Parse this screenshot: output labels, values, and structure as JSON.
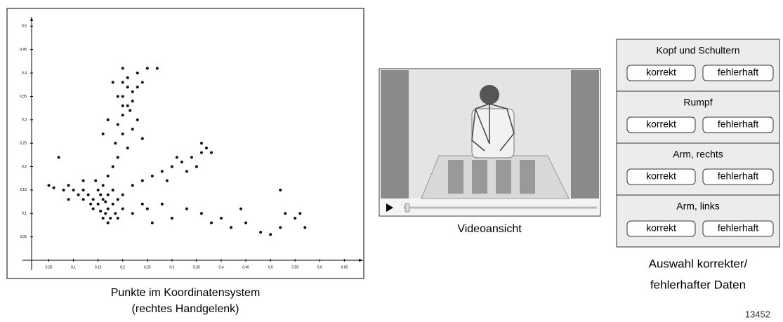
{
  "chart_data": {
    "type": "scatter",
    "color": "#111111",
    "x": [
      0.15,
      0.16,
      0.17,
      0.155,
      0.165,
      0.14,
      0.17,
      0.18,
      0.16,
      0.15,
      0.13,
      0.12,
      0.11,
      0.1,
      0.14,
      0.175,
      0.18,
      0.19,
      0.2,
      0.16,
      0.145,
      0.135,
      0.17,
      0.185,
      0.09,
      0.12,
      0.155,
      0.165,
      0.19,
      0.2,
      0.18,
      0.19,
      0.185,
      0.2,
      0.19,
      0.2,
      0.21,
      0.2,
      0.21,
      0.22,
      0.2,
      0.21,
      0.2,
      0.22,
      0.23,
      0.215,
      0.19,
      0.18,
      0.2,
      0.23,
      0.24,
      0.25,
      0.27,
      0.22,
      0.21,
      0.17,
      0.16,
      0.17,
      0.23,
      0.24,
      0.22,
      0.24,
      0.26,
      0.28,
      0.3,
      0.32,
      0.34,
      0.36,
      0.37,
      0.38,
      0.35,
      0.33,
      0.29,
      0.36,
      0.31,
      0.22,
      0.25,
      0.28,
      0.3,
      0.33,
      0.36,
      0.38,
      0.4,
      0.42,
      0.45,
      0.48,
      0.5,
      0.52,
      0.53,
      0.55,
      0.56,
      0.57,
      0.52,
      0.44,
      0.26,
      0.24,
      0.08,
      0.06,
      0.07,
      0.05,
      0.09,
      0.12
    ],
    "y": [
      0.12,
      0.13,
      0.11,
      0.14,
      0.1,
      0.13,
      0.14,
      0.12,
      0.09,
      0.15,
      0.14,
      0.13,
      0.14,
      0.15,
      0.11,
      0.09,
      0.15,
      0.13,
      0.11,
      0.16,
      0.17,
      0.12,
      0.08,
      0.1,
      0.16,
      0.15,
      0.105,
      0.125,
      0.09,
      0.14,
      0.2,
      0.22,
      0.25,
      0.27,
      0.29,
      0.31,
      0.33,
      0.35,
      0.37,
      0.36,
      0.38,
      0.39,
      0.41,
      0.34,
      0.37,
      0.32,
      0.35,
      0.38,
      0.33,
      0.4,
      0.38,
      0.41,
      0.41,
      0.28,
      0.24,
      0.18,
      0.27,
      0.3,
      0.3,
      0.26,
      0.16,
      0.17,
      0.18,
      0.19,
      0.2,
      0.21,
      0.22,
      0.23,
      0.24,
      0.23,
      0.2,
      0.19,
      0.17,
      0.25,
      0.22,
      0.1,
      0.11,
      0.12,
      0.09,
      0.11,
      0.1,
      0.08,
      0.09,
      0.07,
      0.08,
      0.06,
      0.055,
      0.07,
      0.1,
      0.09,
      0.1,
      0.07,
      0.15,
      0.11,
      0.08,
      0.12,
      0.15,
      0.155,
      0.22,
      0.16,
      0.13,
      0.17
    ],
    "xlim": [
      0.015,
      0.688
    ],
    "ylim": [
      0,
      0.52
    ],
    "xticks": [
      {
        "value": 0.05,
        "label": "0,05"
      },
      {
        "value": 0.1,
        "label": "0,1"
      },
      {
        "value": 0.15,
        "label": "0,15"
      },
      {
        "value": 0.2,
        "label": "0,2"
      },
      {
        "value": 0.25,
        "label": "0,25"
      },
      {
        "value": 0.3,
        "label": "0,3"
      },
      {
        "value": 0.35,
        "label": "0,35"
      },
      {
        "value": 0.4,
        "label": "0,4"
      },
      {
        "value": 0.45,
        "label": "0,45"
      },
      {
        "value": 0.5,
        "label": "0,5"
      },
      {
        "value": 0.55,
        "label": "0,55"
      },
      {
        "value": 0.6,
        "label": "0,6"
      },
      {
        "value": 0.65,
        "label": "0,65"
      }
    ],
    "yticks": [
      {
        "value": 0.05,
        "label": "0,05"
      },
      {
        "value": 0.1,
        "label": "0,1"
      },
      {
        "value": 0.15,
        "label": "0,15"
      },
      {
        "value": 0.2,
        "label": "0,2"
      },
      {
        "value": 0.25,
        "label": "0,25"
      },
      {
        "value": 0.3,
        "label": "0,3"
      },
      {
        "value": 0.35,
        "label": "0,35"
      },
      {
        "value": 0.4,
        "label": "0,4"
      },
      {
        "value": 0.45,
        "label": "0,45"
      },
      {
        "value": 0.5,
        "label": "0,5"
      }
    ]
  },
  "chart_caption": [
    "Punkte im Koordinatensystem",
    "(rechtes Handgelenk)"
  ],
  "video": {
    "caption": "Videoansicht"
  },
  "panel": {
    "sections": [
      {
        "title": "Kopf und Schultern",
        "buttons": [
          "korrekt",
          "fehlerhaft"
        ]
      },
      {
        "title": "Rumpf",
        "buttons": [
          "korrekt",
          "fehlerhaft"
        ]
      },
      {
        "title": "Arm, rechts",
        "buttons": [
          "korrekt",
          "fehlerhaft"
        ]
      },
      {
        "title": "Arm, links",
        "buttons": [
          "korrekt",
          "fehlerhaft"
        ]
      }
    ],
    "caption": [
      "Auswahl korrekter/",
      "fehlerhafter Daten"
    ]
  },
  "figure_id": "13452"
}
